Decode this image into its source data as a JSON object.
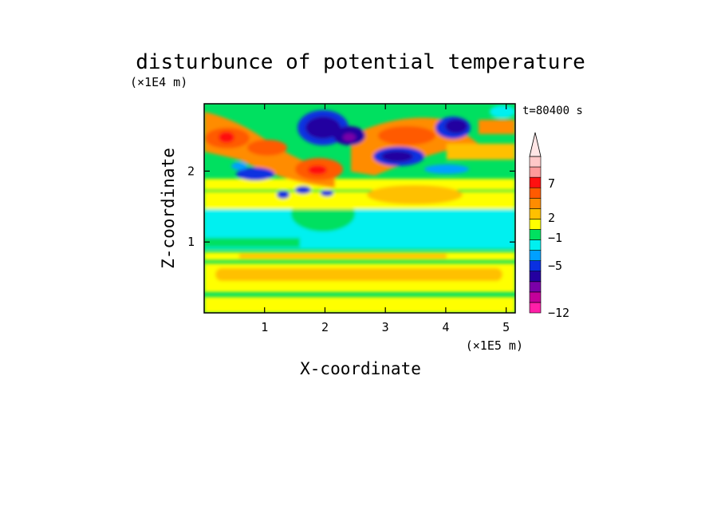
{
  "chart_data": {
    "type": "heatmap",
    "title": "disturbunce of potential temperature",
    "xlabel": "X-coordinate",
    "ylabel": "Z-coordinate",
    "x_unit": "(×1E5 m)",
    "y_unit": "(×1E4 m)",
    "time_label": "t=80400 s",
    "xlim": [
      0,
      5.15
    ],
    "ylim": [
      0,
      2.95
    ],
    "x_ticks": [
      "1",
      "2",
      "3",
      "4",
      "5"
    ],
    "x_tick_values": [
      1,
      2,
      3,
      4,
      5
    ],
    "y_ticks": [
      "1",
      "2"
    ],
    "y_tick_values": [
      1,
      2
    ],
    "colorbar": {
      "tick_labels": [
        "7",
        "2",
        "−1",
        "−5",
        "−12"
      ],
      "tick_values": [
        7,
        2,
        -1,
        -5,
        -12
      ],
      "extend": "max",
      "colors": [
        "#ff1fa8",
        "#c4009a",
        "#7a00a8",
        "#2400a0",
        "#0a30e0",
        "#00a0ff",
        "#00f0f0",
        "#00e060",
        "#ffff00",
        "#ffc000",
        "#ff8c00",
        "#ff5a00",
        "#ff1010",
        "#ff9a9a",
        "#ffc8c8"
      ]
    },
    "grid": false
  }
}
